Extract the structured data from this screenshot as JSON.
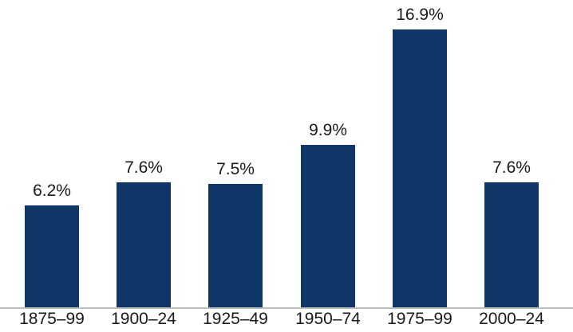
{
  "chart_data": {
    "type": "bar",
    "categories": [
      "1875–99",
      "1900–24",
      "1925–49",
      "1950–74",
      "1975–99",
      "2000–24"
    ],
    "values": [
      6.2,
      7.6,
      7.5,
      9.9,
      16.9,
      7.6
    ],
    "value_labels": [
      "6.2%",
      "7.6%",
      "7.5%",
      "9.9%",
      "16.9%",
      "7.6%"
    ],
    "title": "",
    "xlabel": "",
    "ylabel": "",
    "ylim": [
      0,
      18
    ],
    "grid": false,
    "legend": false,
    "colors": {
      "bar": "#0e3768",
      "axis_line": "#bdbdbd",
      "label_text": "#1a1a1a"
    }
  }
}
